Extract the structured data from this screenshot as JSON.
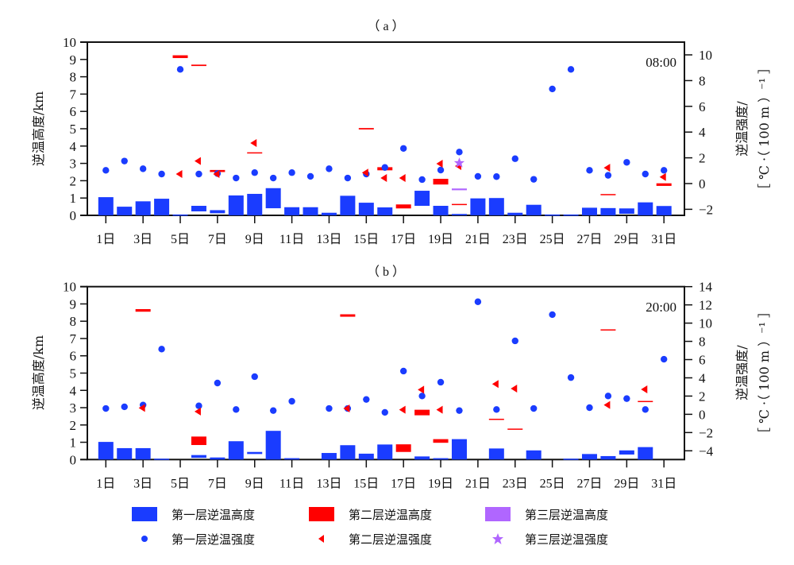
{
  "chart_data": {
    "type": "bar",
    "days": [
      1,
      2,
      3,
      4,
      5,
      6,
      7,
      8,
      9,
      10,
      11,
      12,
      13,
      14,
      15,
      16,
      17,
      18,
      19,
      20,
      21,
      22,
      23,
      24,
      25,
      26,
      27,
      28,
      29,
      30,
      31
    ],
    "xtick_labels": [
      "1日",
      "3日",
      "5日",
      "7日",
      "9日",
      "11日",
      "13日",
      "15日",
      "17日",
      "19日",
      "21日",
      "23日",
      "25日",
      "27日",
      "29日",
      "31日"
    ],
    "xtick_days": [
      1,
      3,
      5,
      7,
      9,
      11,
      13,
      15,
      17,
      19,
      21,
      23,
      25,
      27,
      29,
      31
    ],
    "colors": {
      "layer1": "#1a3cff",
      "layer2": "#ff0000",
      "layer3": "#b066ff"
    },
    "legend": {
      "placement": "bottom",
      "items": [
        {
          "label": "第一层逆温高度",
          "type": "bar",
          "color": "#1a3cff",
          "icon": "rect"
        },
        {
          "label": "第二层逆温高度",
          "type": "bar",
          "color": "#ff0000",
          "icon": "rect"
        },
        {
          "label": "第三层逆温高度",
          "type": "bar",
          "color": "#b066ff",
          "icon": "rect"
        },
        {
          "label": "第一层逆温强度",
          "type": "point",
          "color": "#1a3cff",
          "icon": "circle"
        },
        {
          "label": "第二层逆温强度",
          "type": "point",
          "color": "#ff0000",
          "icon": "triangle-left"
        },
        {
          "label": "第三层逆温强度",
          "type": "point",
          "color": "#b066ff",
          "icon": "star"
        }
      ]
    },
    "panels": [
      {
        "title": "（ a ）",
        "time_label": "08:00",
        "ylabel_left": "逆温高度/km",
        "ylabel_right_line1": "逆温强度/",
        "ylabel_right_line2": "［ ℃ ·（ 100 m ）⁻¹ ］",
        "ylim_left": [
          0,
          10
        ],
        "ylim_right": [
          -2.47,
          10.99
        ],
        "yticks_left": [
          0,
          1,
          2,
          3,
          4,
          5,
          6,
          7,
          8,
          9,
          10
        ],
        "yticks_right": [
          -2,
          0,
          2,
          4,
          6,
          8,
          10
        ],
        "layer1_height": [
          [
            0,
            1.05
          ],
          [
            0,
            0.5
          ],
          [
            0,
            0.81
          ],
          [
            0,
            0.96
          ],
          [
            0,
            0.05
          ],
          [
            0.23,
            0.55
          ],
          [
            0.12,
            0.3
          ],
          [
            0,
            1.15
          ],
          [
            0,
            1.24
          ],
          [
            0.41,
            1.57
          ],
          [
            0,
            0.47
          ],
          [
            0,
            0.47
          ],
          [
            0,
            0.15
          ],
          [
            0,
            1.13
          ],
          [
            0,
            0.73
          ],
          [
            0,
            0.46
          ],
          null,
          [
            0.55,
            1.42
          ],
          [
            0,
            0.55
          ],
          [
            0,
            0.08
          ],
          [
            0,
            0.98
          ],
          [
            0,
            1.0
          ],
          [
            0,
            0.15
          ],
          [
            0,
            0.61
          ],
          [
            0,
            0.05
          ],
          [
            0,
            0.05
          ],
          [
            0,
            0.44
          ],
          [
            0,
            0.42
          ],
          [
            0.09,
            0.4
          ],
          [
            0,
            0.75
          ],
          [
            0,
            0.54
          ]
        ],
        "layer2_height": [
          null,
          null,
          null,
          null,
          [
            9.08,
            9.24
          ],
          [
            8.62,
            8.7
          ],
          [
            2.5,
            2.62
          ],
          null,
          [
            3.6,
            3.64
          ],
          null,
          null,
          null,
          null,
          null,
          [
            4.96,
            5.04
          ],
          [
            2.6,
            2.78
          ],
          [
            0.4,
            0.63
          ],
          null,
          [
            1.78,
            2.11
          ],
          [
            0.62,
            0.66
          ],
          null,
          null,
          null,
          null,
          null,
          null,
          null,
          [
            1.19,
            1.23
          ],
          null,
          null,
          [
            1.7,
            1.85
          ]
        ],
        "layer3_height": [
          null,
          null,
          null,
          null,
          null,
          null,
          null,
          null,
          null,
          null,
          null,
          null,
          null,
          null,
          null,
          null,
          null,
          null,
          null,
          [
            1.45,
            1.55
          ],
          null,
          null,
          null,
          null,
          null,
          null,
          null,
          null,
          null,
          null,
          null
        ],
        "layer1_intensity": [
          1.03,
          1.75,
          1.15,
          0.74,
          8.87,
          0.74,
          0.78,
          0.43,
          0.85,
          0.43,
          0.85,
          0.56,
          1.15,
          0.43,
          0.74,
          1.25,
          2.73,
          0.31,
          1.05,
          2.45,
          0.56,
          0.54,
          1.93,
          0.33,
          7.35,
          8.87,
          1.03,
          0.64,
          1.65,
          0.74,
          1.03
        ],
        "layer2_intensity": [
          null,
          null,
          null,
          null,
          0.74,
          1.75,
          0.74,
          null,
          3.15,
          null,
          null,
          null,
          null,
          null,
          0.85,
          0.43,
          0.43,
          null,
          1.54,
          1.36,
          null,
          null,
          null,
          null,
          null,
          null,
          null,
          1.23,
          null,
          null,
          0.51
        ],
        "layer3_intensity": [
          null,
          null,
          null,
          null,
          null,
          null,
          null,
          null,
          null,
          null,
          null,
          null,
          null,
          null,
          null,
          null,
          null,
          null,
          null,
          1.6,
          null,
          null,
          null,
          null,
          null,
          null,
          null,
          null,
          null,
          null,
          null
        ]
      },
      {
        "title": "（ b ）",
        "time_label": "20:00",
        "ylabel_left": "逆温高度/km",
        "ylabel_right_line1": "逆温强度/",
        "ylabel_right_line2": "［ ℃ ·（ 100 m ）⁻¹ ］",
        "ylim_left": [
          0,
          10
        ],
        "ylim_right": [
          -4.96,
          14
        ],
        "yticks_left": [
          0,
          1,
          2,
          3,
          4,
          5,
          6,
          7,
          8,
          9,
          10
        ],
        "yticks_right": [
          -4,
          -2,
          0,
          2,
          4,
          6,
          8,
          10,
          12,
          14
        ],
        "layer1_height": [
          [
            0,
            1.02
          ],
          [
            0,
            0.66
          ],
          [
            0,
            0.66
          ],
          [
            0,
            0.05
          ],
          null,
          [
            0.1,
            0.26
          ],
          [
            0,
            0.12
          ],
          [
            0,
            1.06
          ],
          [
            0.32,
            0.44
          ],
          [
            0,
            1.66
          ],
          [
            0,
            0.08
          ],
          null,
          [
            0,
            0.38
          ],
          [
            0,
            0.83
          ],
          [
            0,
            0.34
          ],
          [
            0,
            0.87
          ],
          null,
          [
            0,
            0.18
          ],
          [
            0,
            0.08
          ],
          [
            0,
            1.18
          ],
          null,
          [
            0,
            0.64
          ],
          null,
          [
            0,
            0.53
          ],
          null,
          [
            0,
            0.05
          ],
          [
            0,
            0.32
          ],
          [
            0,
            0.2
          ],
          [
            0.29,
            0.53
          ],
          [
            0,
            0.72
          ],
          null
        ],
        "layer2_height": [
          null,
          null,
          [
            8.55,
            8.7
          ],
          null,
          null,
          [
            0.84,
            1.33
          ],
          null,
          null,
          null,
          null,
          null,
          null,
          null,
          [
            8.26,
            8.4
          ],
          null,
          null,
          [
            0.44,
            0.88
          ],
          [
            2.56,
            2.88
          ],
          [
            0.97,
            1.18
          ],
          null,
          null,
          [
            2.32,
            2.36
          ],
          [
            1.73,
            1.79
          ],
          null,
          null,
          null,
          null,
          [
            7.47,
            7.53
          ],
          null,
          [
            3.35,
            3.39
          ],
          null
        ],
        "layer3_height": [
          null,
          null,
          null,
          null,
          null,
          null,
          null,
          null,
          null,
          null,
          null,
          null,
          null,
          null,
          null,
          null,
          null,
          null,
          null,
          null,
          null,
          null,
          null,
          null,
          null,
          null,
          null,
          null,
          null,
          null,
          null
        ],
        "layer1_intensity": [
          0.64,
          0.82,
          1.02,
          7.15,
          null,
          0.93,
          3.43,
          0.53,
          4.13,
          0.41,
          1.43,
          null,
          0.64,
          0.64,
          1.63,
          0.21,
          4.74,
          2.01,
          3.52,
          0.41,
          12.34,
          0.53,
          8.05,
          0.64,
          10.93,
          4.03,
          0.73,
          2.01,
          1.72,
          0.53,
          6.04
        ],
        "layer2_intensity": [
          null,
          null,
          0.7,
          null,
          null,
          0.3,
          null,
          null,
          null,
          null,
          null,
          null,
          null,
          0.64,
          null,
          null,
          0.5,
          2.7,
          0.5,
          null,
          null,
          3.32,
          2.82,
          null,
          null,
          null,
          null,
          1.02,
          null,
          2.73,
          null
        ],
        "layer3_intensity": [
          null,
          null,
          null,
          null,
          null,
          null,
          null,
          null,
          null,
          null,
          null,
          null,
          null,
          null,
          null,
          null,
          null,
          null,
          null,
          null,
          null,
          null,
          null,
          null,
          null,
          null,
          null,
          null,
          null,
          null,
          null
        ]
      }
    ]
  }
}
